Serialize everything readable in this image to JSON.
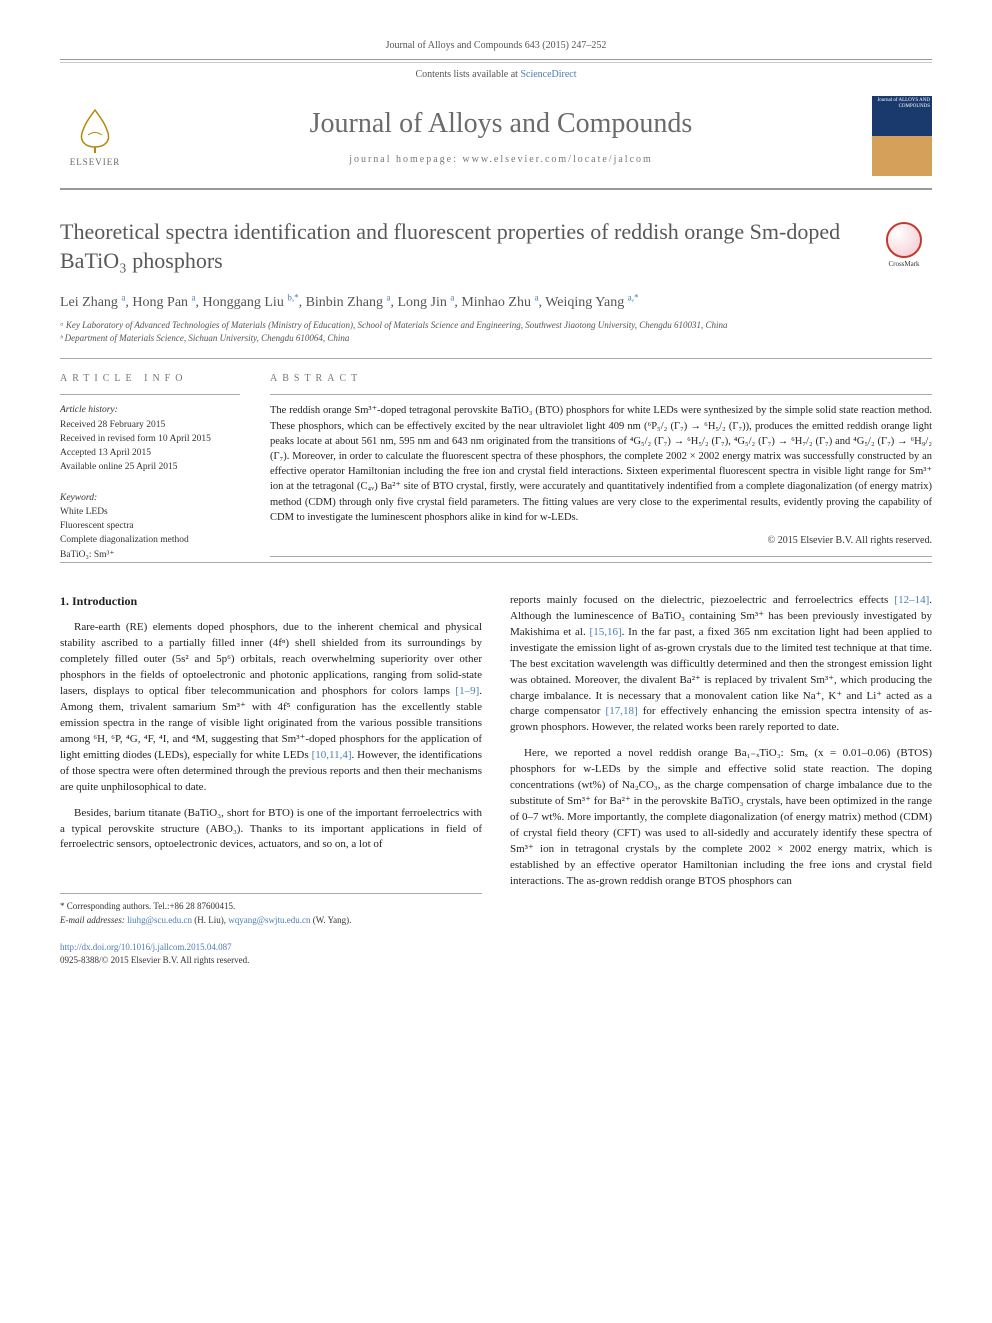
{
  "journal_ref": "Journal of Alloys and Compounds 643 (2015) 247–252",
  "contents_line_prefix": "Contents lists available at ",
  "contents_line_link": "ScienceDirect",
  "journal_title": "Journal of Alloys and Compounds",
  "journal_homepage": "journal homepage: www.elsevier.com/locate/jalcom",
  "elsevier_label": "ELSEVIER",
  "cover_text": "Journal of\nALLOYS\nAND COMPOUNDS",
  "crossmark_label": "CrossMark",
  "article_title": "Theoretical spectra identification and fluorescent properties of reddish orange Sm-doped BaTiO₃ phosphors",
  "authors_html": "Lei Zhang <sup>a</sup>, Hong Pan <sup>a</sup>, Honggang Liu <sup>b,*</sup>, Binbin Zhang <sup>a</sup>, Long Jin <sup>a</sup>, Minhao Zhu <sup>a</sup>, Weiqing Yang <sup>a,*</sup>",
  "affiliations": [
    "ᵃ Key Laboratory of Advanced Technologies of Materials (Ministry of Education), School of Materials Science and Engineering, Southwest Jiaotong University, Chengdu 610031, China",
    "ᵇ Department of Materials Science, Sichuan University, Chengdu 610064, China"
  ],
  "article_info_label": "ARTICLE INFO",
  "abstract_label": "ABSTRACT",
  "history": {
    "heading": "Article history:",
    "lines": [
      "Received 28 February 2015",
      "Received in revised form 10 April 2015",
      "Accepted 13 April 2015",
      "Available online 25 April 2015"
    ]
  },
  "keywords": {
    "heading": "Keyword:",
    "items": [
      "White LEDs",
      "Fluorescent spectra",
      "Complete diagonalization method",
      "BaTiO₃: Sm³⁺"
    ]
  },
  "abstract_text": "The reddish orange Sm³⁺-doped tetragonal perovskite BaTiO₃ (BTO) phosphors for white LEDs were synthesized by the simple solid state reaction method. These phosphors, which can be effectively excited by the near ultraviolet light 409 nm (⁶P₅/₂ (Γ₇) → ⁶H₅/₂ (Γ₇)), produces the emitted reddish orange light peaks locate at about 561 nm, 595 nm and 643 nm originated from the transitions of ⁴G₅/₂ (Γ₇) → ⁶H₅/₂ (Γ₇), ⁴G₅/₂ (Γ₇) → ⁶H₇/₂ (Γ₇) and ⁴G₅/₂ (Γ₇) → ⁶H₉/₂ (Γ₇). Moreover, in order to calculate the fluorescent spectra of these phosphors, the complete 2002 × 2002 energy matrix was successfully constructed by an effective operator Hamiltonian including the free ion and crystal field interactions. Sixteen experimental fluorescent spectra in visible light range for Sm³⁺ ion at the tetragonal (C₄ᵥ) Ba²⁺ site of BTO crystal, firstly, were accurately and quantitatively indentified from a complete diagonalization (of energy matrix) method (CDM) through only five crystal field parameters. The fitting values are very close to the experimental results, evidently proving the capability of CDM to investigate the luminescent phosphors alike in kind for w-LEDs.",
  "copyright": "© 2015 Elsevier B.V. All rights reserved.",
  "intro_heading": "1. Introduction",
  "intro_paras_left": [
    "Rare-earth (RE) elements doped phosphors, due to the inherent chemical and physical stability ascribed to a partially filled inner (4fⁿ) shell shielded from its surroundings by completely filled outer (5s² and 5p⁶) orbitals, reach overwhelming superiority over other phosphors in the fields of optoelectronic and photonic applications, ranging from solid-state lasers, displays to optical fiber telecommunication and phosphors for colors lamps [1–9]. Among them, trivalent samarium Sm³⁺ with 4f⁵ configuration has the excellently stable emission spectra in the range of visible light originated from the various possible transitions among ⁶H, ⁶P, ⁴G, ⁴F, ⁴I, and ⁴M, suggesting that Sm³⁺-doped phosphors for the application of light emitting diodes (LEDs), especially for white LEDs [10,11,4]. However, the identifications of those spectra were often determined through the previous reports and then their mechanisms are quite unphilosophical to date.",
    "Besides, barium titanate (BaTiO₃, short for BTO) is one of the important ferroelectrics with a typical perovskite structure (ABO₃). Thanks to its important applications in field of ferroelectric sensors, optoelectronic devices, actuators, and so on, a lot of"
  ],
  "intro_paras_right": [
    "reports mainly focused on the dielectric, piezoelectric and ferroelectrics effects [12–14]. Although the luminescence of BaTiO₃ containing Sm³⁺ has been previously investigated by Makishima et al. [15,16]. In the far past, a fixed 365 nm excitation light had been applied to investigate the emission light of as-grown crystals due to the limited test technique at that time. The best excitation wavelength was difficultly determined and then the strongest emission light was obtained. Moreover, the divalent Ba²⁺ is replaced by trivalent Sm³⁺, which producing the charge imbalance. It is necessary that a monovalent cation like Na⁺, K⁺ and Li⁺ acted as a charge compensator [17,18] for effectively enhancing the emission spectra intensity of as-grown phosphors. However, the related works been rarely reported to date.",
    "Here, we reported a novel reddish orange Ba₁₋ₓTiO₃: Smₓ (x = 0.01–0.06) (BTOS) phosphors for w-LEDs by the simple and effective solid state reaction. The doping concentrations (wt%) of Na₂CO₃, as the charge compensation of charge imbalance due to the substitute of Sm³⁺ for Ba²⁺ in the perovskite BaTiO₃ crystals, have been optimized in the range of 0–7 wt%. More importantly, the complete diagonalization (of energy matrix) method (CDM) of crystal field theory (CFT) was used to all-sidedly and accurately identify these spectra of Sm³⁺ ion in tetragonal crystals by the complete 2002 × 2002 energy matrix, which is established by an effective operator Hamiltonian including the free ions and crystal field interactions. The as-grown reddish orange BTOS phosphors can"
  ],
  "refs_inline": {
    "r1_9": "[1–9]",
    "r10_11_4": "[10,11,4]",
    "r12_14": "[12–14]",
    "r15_16": "[15,16]",
    "r17_18": "[17,18]"
  },
  "footnotes": {
    "corresponding": "* Corresponding authors. Tel.:+86 28 87600415.",
    "email_label": "E-mail addresses: ",
    "email1": "liuhg@scu.edu.cn",
    "email1_name": " (H. Liu), ",
    "email2": "wqyang@swjtu.edu.cn",
    "email2_name": " (W. Yang)."
  },
  "doi": "http://dx.doi.org/10.1016/j.jallcom.2015.04.087",
  "issn_copyright": "0925-8388/© 2015 Elsevier B.V. All rights reserved.",
  "colors": {
    "link": "#4a7db5",
    "heading_gray": "#585858",
    "text": "#222222",
    "rule": "#999999"
  }
}
